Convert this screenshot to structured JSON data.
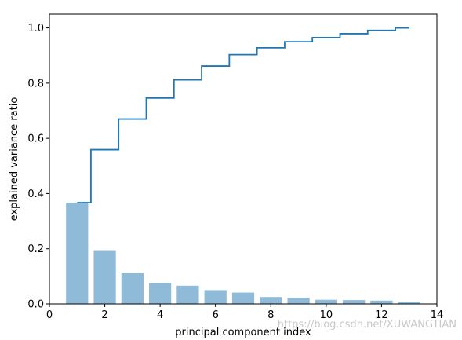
{
  "chart_data": {
    "type": "bar",
    "xlabel": "principal component index",
    "ylabel": "explained variance ratio",
    "xlim": [
      0,
      14
    ],
    "ylim": [
      0,
      1.05
    ],
    "xticks": [
      0,
      2,
      4,
      6,
      8,
      10,
      12,
      14
    ],
    "yticks": [
      0.0,
      0.2,
      0.4,
      0.6,
      0.8,
      1.0
    ],
    "xtick_labels": [
      "0",
      "2",
      "4",
      "6",
      "8",
      "10",
      "12",
      "14"
    ],
    "ytick_labels": [
      "0.0",
      "0.2",
      "0.4",
      "0.6",
      "0.8",
      "1.0"
    ],
    "grid": false,
    "x": [
      1,
      2,
      3,
      4,
      5,
      6,
      7,
      8,
      9,
      10,
      11,
      12,
      13
    ],
    "series": [
      {
        "type": "bar",
        "values": [
          0.367,
          0.192,
          0.111,
          0.076,
          0.066,
          0.05,
          0.041,
          0.025,
          0.022,
          0.015,
          0.014,
          0.012,
          0.008
        ],
        "color": "#8fbbd9"
      },
      {
        "type": "step",
        "values": [
          0.367,
          0.559,
          0.67,
          0.746,
          0.812,
          0.862,
          0.903,
          0.928,
          0.95,
          0.965,
          0.979,
          0.991,
          1.0
        ],
        "color": "#1f77b4"
      }
    ]
  },
  "watermark": "https://blog.csdn.net/XUWANGTIAN"
}
